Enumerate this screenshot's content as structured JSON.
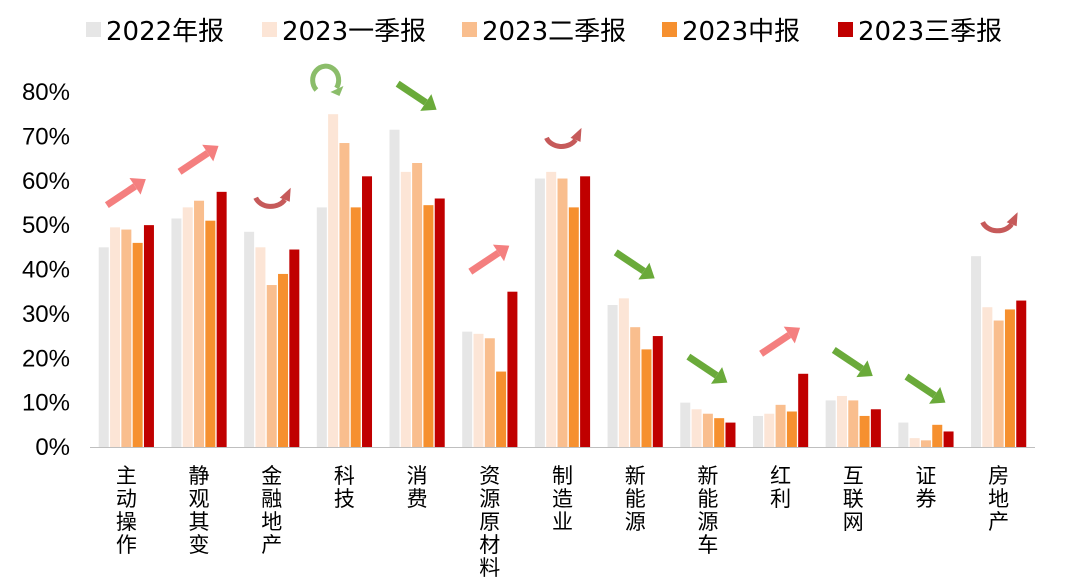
{
  "chart_data": {
    "type": "bar",
    "categories": [
      "主动操作",
      "静观其变",
      "金融地产",
      "科技",
      "消费",
      "资源原材料",
      "制造业",
      "新能源",
      "新能源车",
      "红利",
      "互联网",
      "证券",
      "房地产"
    ],
    "series": [
      {
        "name": "2022年报",
        "color": "#e6e6e6",
        "values": [
          45,
          51.5,
          48.5,
          54,
          71.5,
          26,
          60.5,
          32,
          10,
          7,
          10.5,
          5.5,
          43
        ]
      },
      {
        "name": "2023一季报",
        "color": "#fce5d6",
        "values": [
          49.5,
          54,
          45,
          75,
          62,
          25.5,
          62,
          33.5,
          8.5,
          7.5,
          11.5,
          2,
          31.5
        ]
      },
      {
        "name": "2023二季报",
        "color": "#f9be8e",
        "values": [
          49,
          55.5,
          36.5,
          68.5,
          64,
          24.5,
          60.5,
          27,
          7.5,
          9.5,
          10.5,
          1.5,
          28.5
        ]
      },
      {
        "name": "2023中报",
        "color": "#f6902f",
        "values": [
          46,
          51,
          39,
          54,
          54.5,
          17,
          54,
          22,
          6.5,
          8,
          7,
          5,
          31
        ]
      },
      {
        "name": "2023三季报",
        "color": "#c00000",
        "values": [
          50,
          57.5,
          44.5,
          61,
          56,
          35,
          61,
          25,
          5.5,
          16.5,
          8.5,
          3.5,
          33
        ]
      }
    ],
    "ylim": [
      0,
      80
    ],
    "yticks": [
      "0%",
      "10%",
      "20%",
      "30%",
      "40%",
      "50%",
      "60%",
      "70%",
      "80%"
    ],
    "legend_position": "top",
    "grid": false,
    "trend_arrows": [
      "up",
      "up",
      "reversal",
      "reversal",
      "down",
      "up",
      "reversal",
      "down",
      "down",
      "up",
      "down",
      "down",
      "reversal"
    ],
    "arrow_colors": {
      "up": "#f47f7f",
      "down": "#6aaa3a",
      "reversal_red": "#c65a5a",
      "reversal_green": "#8bbd6a"
    }
  }
}
